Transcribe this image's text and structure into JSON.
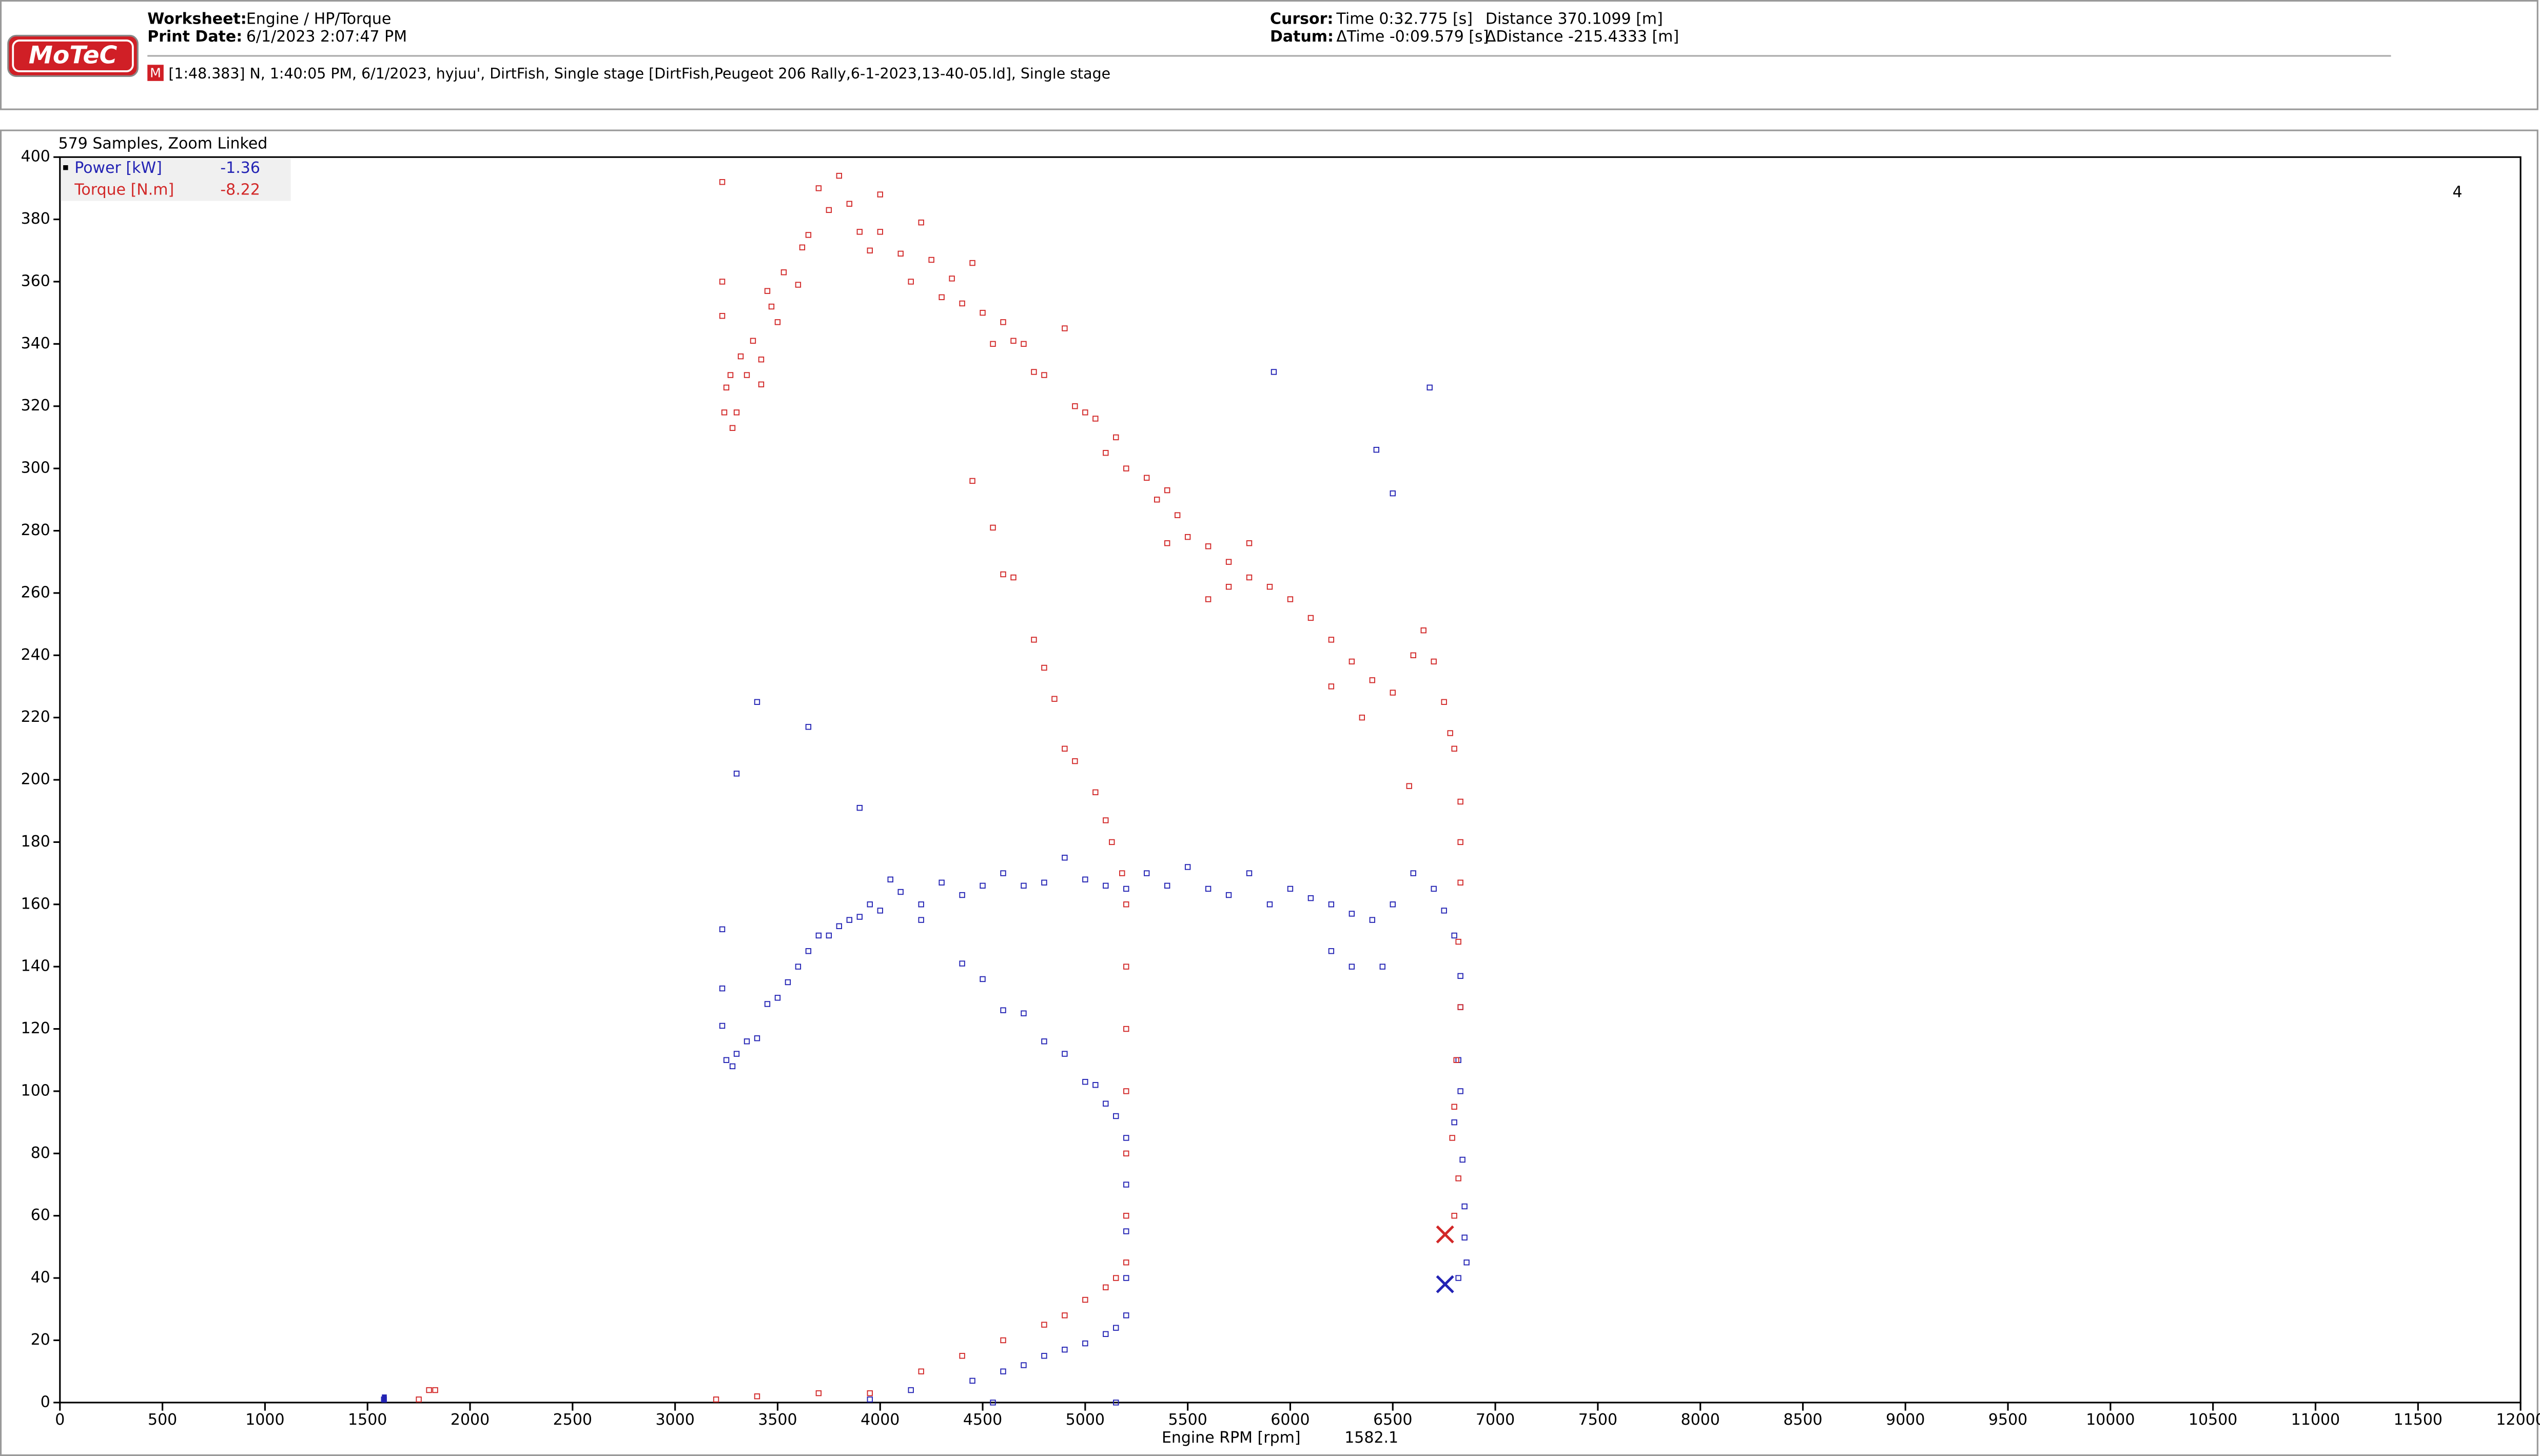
{
  "header": {
    "logo": "MoTeC",
    "worksheet_label": "Worksheet:",
    "worksheet": "Engine / HP/Torque",
    "print_date_label": "Print Date:",
    "print_date": "6/1/2023 2:07:47 PM",
    "cursor_label": "Cursor:",
    "cursor_time": "Time  0:32.775 [s]",
    "cursor_distance": "Distance  370.1099 [m]",
    "datum_label": "Datum:",
    "datum_time": "ΔTime  -0:09.579 [s]",
    "datum_distance": "ΔDistance  -215.4333 [m]",
    "session_badge": "M",
    "session": "[1:48.383] N, 1:40:05 PM, 6/1/2023, hyjuu', DirtFish, Single stage [DirtFish,Peugeot 206 Rally,6-1-2023,13-40-05.ld], Single stage"
  },
  "panel": {
    "samples_label": "579 Samples, Zoom Linked",
    "corner_label": "4"
  },
  "chart_data": {
    "type": "scatter",
    "x_label": "Engine RPM [rpm]",
    "x_cursor": 1582.1,
    "xlim": [
      0,
      12000
    ],
    "xticks": [
      0,
      500,
      1000,
      1500,
      2000,
      2500,
      3000,
      3500,
      4000,
      4500,
      5000,
      5500,
      6000,
      6500,
      7000,
      7500,
      8000,
      8500,
      9000,
      9500,
      10000,
      10500,
      11000,
      11500,
      12000
    ],
    "ylim": [
      0,
      400
    ],
    "yticks": [
      0,
      20,
      40,
      60,
      80,
      100,
      120,
      140,
      160,
      180,
      200,
      220,
      240,
      260,
      280,
      300,
      320,
      340,
      360,
      380,
      400
    ],
    "series": [
      {
        "name": "Power [kW]",
        "color": "#2323b4",
        "cursor_value": -1.36,
        "marker_x": 6755,
        "marker_value": 38,
        "x": [
          3230,
          3230,
          3230,
          3250,
          3280,
          3300,
          3350,
          3400,
          3450,
          3500,
          3550,
          3600,
          3650,
          3700,
          3750,
          3800,
          3850,
          3900,
          3950,
          4000,
          4050,
          4100,
          4200,
          4300,
          4400,
          4500,
          4600,
          4700,
          4800,
          4900,
          5000,
          5100,
          5200,
          5300,
          5400,
          5500,
          5600,
          5700,
          5800,
          5900,
          6000,
          6100,
          6200,
          6300,
          6400,
          6500,
          6600,
          6700,
          6750,
          6800,
          6200,
          6300,
          6450,
          4200,
          4400,
          4500,
          4600,
          4700,
          4800,
          4900,
          5000,
          5050,
          5100,
          5150,
          5200,
          5200,
          5200,
          5200,
          5200,
          5150,
          5100,
          5000,
          4900,
          4800,
          4700,
          4600,
          4450,
          4150,
          3950,
          4550,
          5150,
          3400,
          3650,
          3300,
          3900,
          5920,
          6420,
          6500,
          6680,
          6830,
          6830,
          6820,
          6830,
          6800,
          6840,
          6850,
          6850,
          6860,
          6820,
          1580
        ],
        "values": [
          152,
          133,
          121,
          110,
          108,
          112,
          116,
          117,
          128,
          130,
          135,
          140,
          145,
          150,
          150,
          153,
          155,
          156,
          160,
          158,
          168,
          164,
          160,
          167,
          163,
          166,
          170,
          166,
          167,
          175,
          168,
          166,
          165,
          170,
          166,
          172,
          165,
          163,
          170,
          160,
          165,
          162,
          160,
          157,
          155,
          160,
          170,
          165,
          158,
          150,
          145,
          140,
          140,
          155,
          141,
          136,
          126,
          125,
          116,
          112,
          103,
          102,
          96,
          92,
          85,
          70,
          55,
          40,
          28,
          24,
          22,
          19,
          17,
          15,
          12,
          10,
          7,
          4,
          1,
          0,
          0,
          225,
          217,
          202,
          191,
          331,
          306,
          292,
          326,
          137,
          127,
          110,
          100,
          90,
          78,
          63,
          53,
          45,
          40,
          1
        ]
      },
      {
        "name": "Torque [N.m]",
        "color": "#d22828",
        "cursor_value": -8.22,
        "marker_x": 6755,
        "marker_value": 54,
        "x": [
          3230,
          3230,
          3230,
          3250,
          3240,
          3280,
          3300,
          3270,
          3320,
          3350,
          3380,
          3420,
          3420,
          3450,
          3470,
          3500,
          3530,
          3600,
          3620,
          3650,
          3700,
          3750,
          3800,
          3850,
          3900,
          3950,
          4000,
          4000,
          4100,
          4200,
          4150,
          4250,
          4300,
          4350,
          4400,
          4450,
          4500,
          4550,
          4600,
          4650,
          4700,
          4750,
          4800,
          4900,
          4950,
          5000,
          5050,
          5100,
          5150,
          5200,
          5300,
          5350,
          5400,
          5450,
          5500,
          5600,
          5700,
          5800,
          5900,
          6000,
          6100,
          6200,
          6300,
          6400,
          6500,
          6600,
          6650,
          6700,
          6750,
          6780,
          6800,
          5600,
          5700,
          5400,
          5800,
          6200,
          6350,
          4450,
          4550,
          4600,
          4650,
          4750,
          4800,
          4850,
          4900,
          4950,
          5050,
          5100,
          5130,
          5180,
          5200,
          5200,
          5200,
          5200,
          5200,
          5200,
          5200,
          5150,
          5100,
          5000,
          4900,
          4800,
          4600,
          4400,
          4200,
          3950,
          3700,
          3400,
          3200,
          1800,
          1830,
          1750,
          6830,
          6830,
          6830,
          6820,
          6830,
          6810,
          6800,
          6790,
          6820,
          6800,
          6580
        ],
        "values": [
          392,
          360,
          349,
          326,
          318,
          313,
          318,
          330,
          336,
          330,
          341,
          335,
          327,
          357,
          352,
          347,
          363,
          359,
          371,
          375,
          390,
          383,
          394,
          385,
          376,
          370,
          376,
          388,
          369,
          379,
          360,
          367,
          355,
          361,
          353,
          366,
          350,
          340,
          347,
          341,
          340,
          331,
          330,
          345,
          320,
          318,
          316,
          305,
          310,
          300,
          297,
          290,
          293,
          285,
          278,
          275,
          270,
          265,
          262,
          258,
          252,
          245,
          238,
          232,
          228,
          240,
          248,
          238,
          225,
          215,
          210,
          258,
          262,
          276,
          276,
          230,
          220,
          296,
          281,
          266,
          265,
          245,
          236,
          226,
          210,
          206,
          196,
          187,
          180,
          170,
          160,
          140,
          120,
          100,
          80,
          60,
          45,
          40,
          37,
          33,
          28,
          25,
          20,
          15,
          10,
          3,
          3,
          2,
          1,
          4,
          4,
          1,
          193,
          180,
          167,
          148,
          127,
          110,
          95,
          85,
          72,
          60,
          198
        ]
      }
    ]
  }
}
